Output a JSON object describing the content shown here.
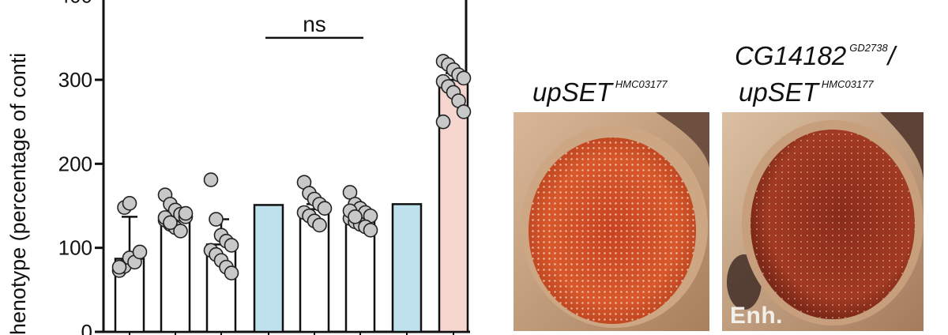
{
  "chart_data": {
    "type": "bar",
    "ylabel": "henotype (percentage of conti",
    "ylim": [
      0,
      400
    ],
    "yticks": [
      "0",
      "100",
      "200",
      "300",
      "400"
    ],
    "bars": [
      {
        "value": 87,
        "err_high": 137,
        "color": "#ffffff",
        "points": [
          73,
          78,
          88,
          83,
          95,
          77,
          148,
          153
        ]
      },
      {
        "value": 138,
        "err_high": 146,
        "color": "#ffffff",
        "points": [
          163,
          152,
          145,
          140,
          137,
          133,
          128,
          124,
          120,
          141,
          136,
          130
        ]
      },
      {
        "value": 104,
        "err_high": 134,
        "color": "#ffffff",
        "points": [
          181,
          134,
          115,
          108,
          103,
          97,
          92,
          85,
          77,
          70
        ]
      },
      {
        "value": 151,
        "err_high": null,
        "color": "#bfe1ee",
        "points": []
      },
      {
        "value": 146,
        "err_high": 152,
        "color": "#ffffff",
        "points": [
          178,
          165,
          158,
          152,
          147,
          142,
          138,
          132,
          127
        ]
      },
      {
        "value": 138,
        "err_high": 143,
        "color": "#ffffff",
        "points": [
          166,
          152,
          147,
          142,
          138,
          135,
          131,
          128,
          125,
          121,
          144,
          137
        ]
      },
      {
        "value": 152,
        "err_high": null,
        "color": "#bfe1ee",
        "points": []
      },
      {
        "value": 300,
        "err_high": 308,
        "color": "#f7d6cf",
        "points": [
          322,
          318,
          312,
          306,
          302,
          298,
          292,
          285,
          275,
          262,
          250
        ]
      }
    ],
    "annotations": [
      {
        "label": "ns",
        "bars": [
          3,
          5
        ],
        "y": 350
      },
      {
        "label": "*",
        "bars": [
          6,
          7
        ],
        "y": 440
      }
    ]
  },
  "panels": {
    "left_label_main": "upSET",
    "left_label_sup": "HMC03177",
    "right_label_line1_main": "CG14182",
    "right_label_line1_sup": "GD2738",
    "right_label_line1_end": "/",
    "right_label_line2_main": "upSET",
    "right_label_line2_sup": "HMC03177",
    "right_tag": "Enh."
  },
  "colors": {
    "eye_orange": "#d9552c",
    "eye_red": "#9a3220",
    "background_skin": "#c7a07d"
  }
}
